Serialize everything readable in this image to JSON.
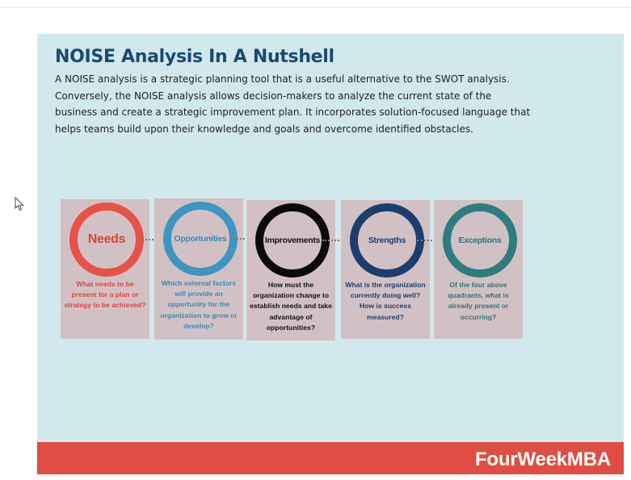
{
  "infographic": {
    "title": "NOISE Analysis In A Nutshell",
    "description": "A NOISE analysis is a strategic planning tool that is a useful alternative to the SWOT analysis. Conversely, the NOISE analysis allows decision-makers to analyze the current state of the business and create a strategic improvement plan. It incorporates solution-focused language that helps teams build upon their knowledge and goals and overcome identified obstacles.",
    "steps": [
      {
        "label": "Needs",
        "question": "What needs to be present for a plan or strategy to be achieved?",
        "ring_color": "#e5524a",
        "label_color": "#d8443c",
        "text_color": "#e0443c"
      },
      {
        "label": "Opportunities",
        "question": "Which external factors will provide an opportunity for the organization to grow or develop?",
        "ring_color": "#3e95c1",
        "label_color": "#3a8bb6",
        "text_color": "#3a8bb6"
      },
      {
        "label": "Improvements",
        "question": "How must the organization change to establish needs and take advantage of opportunities?",
        "ring_color": "#0a0a0a",
        "label_color": "#111111",
        "text_color": "#111111"
      },
      {
        "label": "Strengths",
        "question": "What is the organization currently doing well? How is success measured?",
        "ring_color": "#1c3e6e",
        "label_color": "#1c3e6e",
        "text_color": "#1c3e6e"
      },
      {
        "label": "Exceptions",
        "question": "Of the four above quadrants, what is already present or occurring?",
        "ring_color": "#2e7c80",
        "label_color": "#2d7478",
        "text_color": "#2d7478"
      }
    ],
    "connector_color": "#7a7a7a"
  },
  "footer": {
    "brand": "FourWeekMBA",
    "color": "#e04d43"
  },
  "colors": {
    "card_background": "#d1e8ec",
    "box_background": "#d2c1c4",
    "title": "#1c4872"
  }
}
